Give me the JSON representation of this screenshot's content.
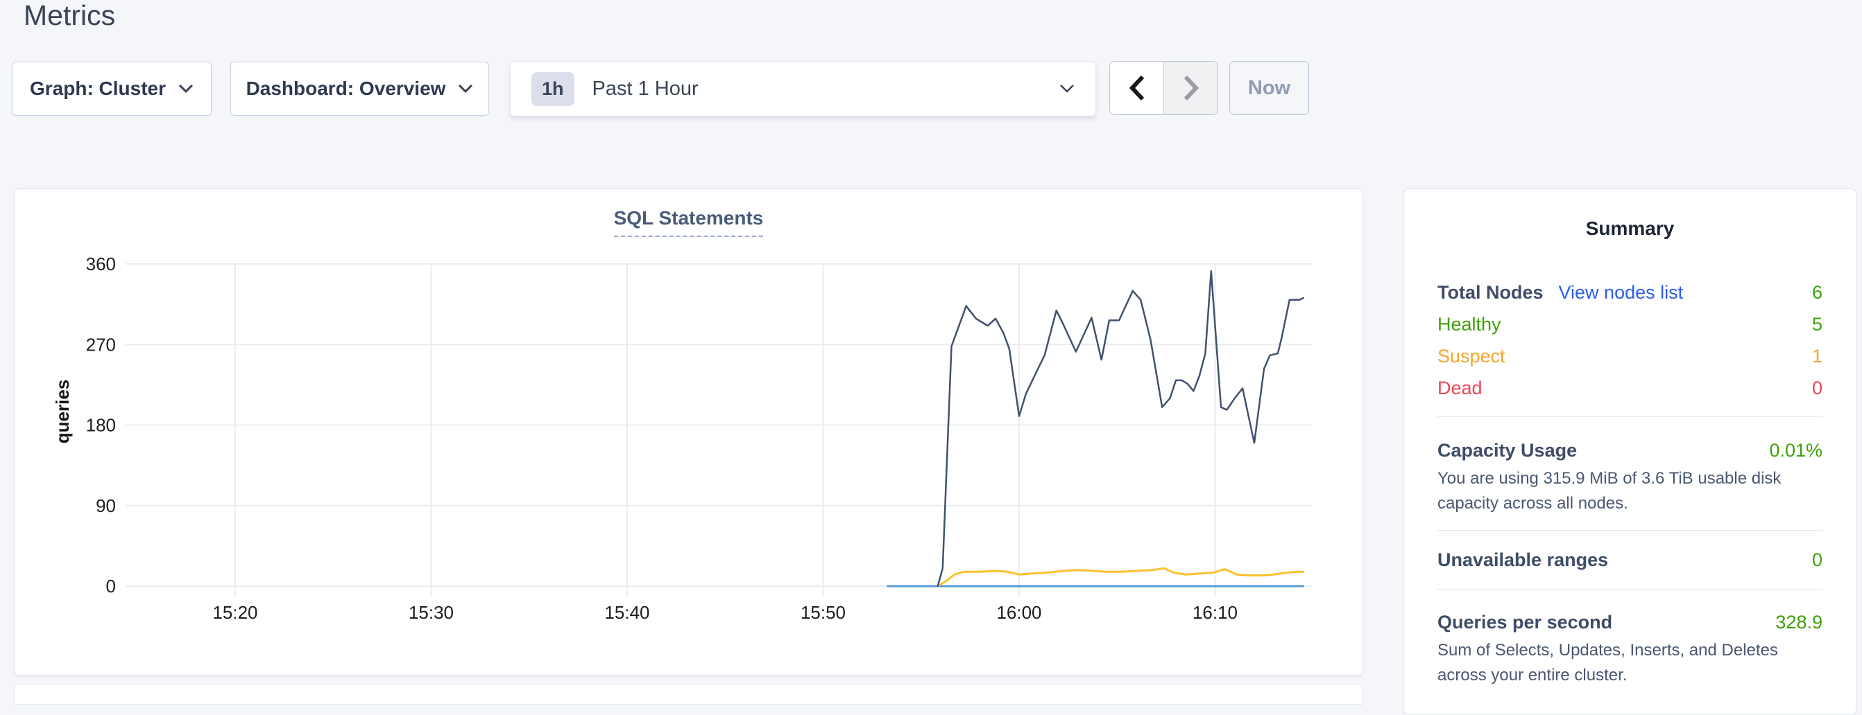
{
  "page": {
    "title": "Metrics"
  },
  "toolbar": {
    "graph_dropdown": {
      "label": "Graph: Cluster"
    },
    "dashboard_dropdown": {
      "label": "Dashboard: Overview"
    },
    "time_range": {
      "badge": "1h",
      "label": "Past 1 Hour"
    },
    "now_button": {
      "label": "Now"
    }
  },
  "chart": {
    "title": "SQL Statements"
  },
  "chart_data": {
    "type": "line",
    "title": "SQL Statements",
    "xlabel": "",
    "ylabel": "queries",
    "ylim": [
      0,
      360
    ],
    "yticks": [
      0,
      90,
      180,
      270,
      360
    ],
    "xticks": [
      {
        "label": "15:20",
        "t": 20
      },
      {
        "label": "15:30",
        "t": 30
      },
      {
        "label": "15:40",
        "t": 40
      },
      {
        "label": "15:50",
        "t": 50
      },
      {
        "label": "16:00",
        "t": 60
      },
      {
        "label": "16:10",
        "t": 70
      }
    ],
    "x_domain_minutes_after_15_00": [
      14.4,
      75
    ],
    "grid": true,
    "legend": "none",
    "series": [
      {
        "name": "dark-navy-line",
        "color": "#41516d",
        "width": 2.5,
        "points": [
          [
            55.85,
            0
          ],
          [
            56.1,
            20
          ],
          [
            56.55,
            268
          ],
          [
            57.3,
            313
          ],
          [
            57.8,
            299
          ],
          [
            58.1,
            295
          ],
          [
            58.4,
            291
          ],
          [
            58.8,
            299
          ],
          [
            59.2,
            283
          ],
          [
            59.5,
            265
          ],
          [
            60.0,
            190
          ],
          [
            60.35,
            215
          ],
          [
            60.9,
            240
          ],
          [
            61.3,
            258
          ],
          [
            61.9,
            308
          ],
          [
            62.2,
            295
          ],
          [
            62.9,
            262
          ],
          [
            63.7,
            300
          ],
          [
            64.2,
            253
          ],
          [
            64.6,
            297
          ],
          [
            65.1,
            297
          ],
          [
            65.8,
            330
          ],
          [
            66.2,
            320
          ],
          [
            66.7,
            276
          ],
          [
            67.3,
            200
          ],
          [
            67.7,
            210
          ],
          [
            68.0,
            230
          ],
          [
            68.3,
            230
          ],
          [
            68.6,
            226
          ],
          [
            68.9,
            218
          ],
          [
            69.2,
            235
          ],
          [
            69.5,
            260
          ],
          [
            69.8,
            352
          ],
          [
            70.3,
            200
          ],
          [
            70.6,
            197
          ],
          [
            71.0,
            210
          ],
          [
            71.4,
            221
          ],
          [
            72.0,
            160
          ],
          [
            72.5,
            243
          ],
          [
            72.8,
            258
          ],
          [
            73.2,
            260
          ],
          [
            73.4,
            278
          ],
          [
            73.8,
            320
          ],
          [
            74.3,
            320
          ],
          [
            74.5,
            322
          ]
        ]
      },
      {
        "name": "yellow-line",
        "color": "#fcc22c",
        "width": 3,
        "points": [
          [
            55.85,
            0
          ],
          [
            56.3,
            6
          ],
          [
            56.7,
            13
          ],
          [
            57.2,
            16
          ],
          [
            58.0,
            16
          ],
          [
            58.8,
            17
          ],
          [
            59.4,
            16
          ],
          [
            60.0,
            13
          ],
          [
            60.6,
            14
          ],
          [
            61.4,
            15
          ],
          [
            62.2,
            17
          ],
          [
            63.0,
            18
          ],
          [
            63.8,
            17
          ],
          [
            64.4,
            16
          ],
          [
            65.2,
            16
          ],
          [
            66.0,
            17
          ],
          [
            66.8,
            18
          ],
          [
            67.4,
            20
          ],
          [
            67.9,
            15
          ],
          [
            68.5,
            13
          ],
          [
            69.2,
            14
          ],
          [
            69.9,
            15
          ],
          [
            70.5,
            19
          ],
          [
            71.1,
            13
          ],
          [
            71.8,
            12
          ],
          [
            72.4,
            12
          ],
          [
            73.0,
            13
          ],
          [
            73.6,
            15
          ],
          [
            74.2,
            16
          ],
          [
            74.5,
            16
          ]
        ]
      },
      {
        "name": "blue-line",
        "color": "#549bd5",
        "width": 3,
        "points": [
          [
            53.3,
            0
          ],
          [
            74.5,
            0
          ]
        ]
      }
    ]
  },
  "summary": {
    "title": "Summary",
    "nodes": {
      "total_label": "Total Nodes",
      "view_link": "View nodes list",
      "total_value": "6",
      "total_value_color": "#3ea009",
      "rows": [
        {
          "label": "Healthy",
          "value": "5",
          "color": "#3ea009"
        },
        {
          "label": "Suspect",
          "value": "1",
          "color": "#f7a42b"
        },
        {
          "label": "Dead",
          "value": "0",
          "color": "#ef4352"
        }
      ]
    },
    "capacity": {
      "label": "Capacity Usage",
      "value": "0.01%",
      "value_color": "#3ea009",
      "description": "You are using 315.9 MiB of 3.6 TiB usable disk capacity across all nodes."
    },
    "unavailable": {
      "label": "Unavailable ranges",
      "value": "0",
      "value_color": "#3ea009"
    },
    "qps": {
      "label": "Queries per second",
      "value": "328.9",
      "value_color": "#3ea009",
      "description": "Sum of Selects, Updates, Inserts, and Deletes across your entire cluster."
    }
  }
}
